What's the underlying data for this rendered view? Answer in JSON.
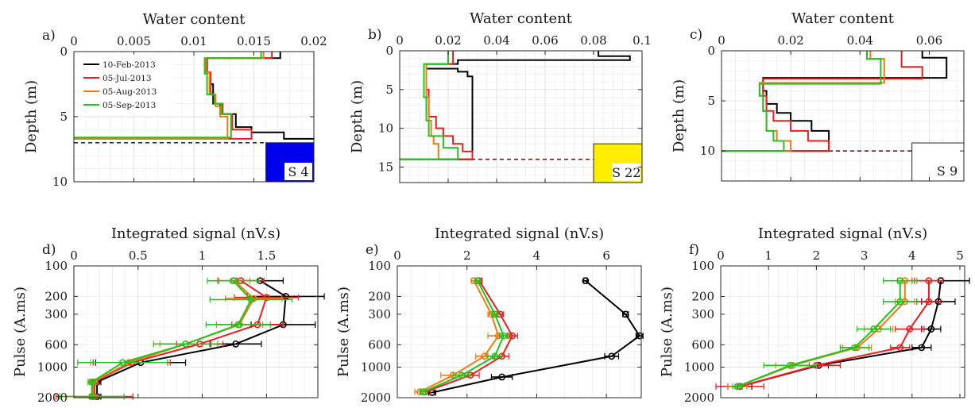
{
  "legend": [
    "10-Feb-2013",
    "05-Jul-2013",
    "05-Aug-2013",
    "05-Sep-2013"
  ],
  "colors": [
    "#000000",
    "#ee1c1c",
    "#f37a12",
    "#1fc41f"
  ],
  "chart_data": [
    {
      "panel": "a)",
      "type": "line",
      "xlabel": "Water content",
      "ylabel": "Depth (m)",
      "xlim": [
        0,
        0.02
      ],
      "ylim": [
        0,
        10
      ],
      "y_reversed": true,
      "grid": true,
      "xticks": [
        0,
        0.005,
        0.01,
        0.015,
        0.02
      ],
      "xtick_labels": [
        "0",
        "0.005",
        "0.01",
        "0.015",
        "0.02"
      ],
      "yticks": [
        0,
        5,
        10
      ],
      "ytick_labels": [
        "0",
        "5",
        "10"
      ],
      "legend_position": "top-left",
      "water_level_depth": 7.0,
      "site": {
        "label": "S 4",
        "fill": "#0000ee",
        "x": [
          0.016,
          0.02
        ],
        "y": [
          7.0,
          10
        ]
      },
      "series": [
        {
          "name": "10-Feb-2013",
          "x": [
            0.0172,
            0.0172,
            0.0111,
            0.0111,
            0.0114,
            0.0114,
            0.0116,
            0.0116,
            0.0122,
            0.0122,
            0.0135,
            0.0135,
            0.0148,
            0.0148,
            0.0175,
            0.0175,
            0.02
          ],
          "y": [
            0,
            0.5,
            0.5,
            1.6,
            1.6,
            2.5,
            2.5,
            4.0,
            4.0,
            4.8,
            4.8,
            5.8,
            5.8,
            6.2,
            6.2,
            6.7,
            6.7
          ]
        },
        {
          "name": "05-Jul-2013",
          "x": [
            0.0165,
            0.0165,
            0.0111,
            0.0111,
            0.0114,
            0.0114,
            0.0118,
            0.0118,
            0.0124,
            0.0124,
            0.0132,
            0.0132,
            0.0148,
            0.0148,
            0.0,
            0.0
          ],
          "y": [
            0,
            0.5,
            0.5,
            1.6,
            1.6,
            3.3,
            3.3,
            4.0,
            4.0,
            4.8,
            4.8,
            6.0,
            6.0,
            6.7,
            6.7,
            6.7
          ]
        },
        {
          "name": "05-Aug-2013",
          "x": [
            0.0158,
            0.0158,
            0.011,
            0.011,
            0.0113,
            0.0113,
            0.0118,
            0.0118,
            0.0122,
            0.0122,
            0.0128,
            0.0128,
            0.0
          ],
          "y": [
            0,
            0.5,
            0.5,
            1.6,
            1.6,
            3.3,
            3.3,
            4.2,
            4.2,
            5.0,
            5.0,
            6.7,
            6.7
          ]
        },
        {
          "name": "05-Sep-2013",
          "x": [
            0.0156,
            0.0156,
            0.0109,
            0.0109,
            0.0111,
            0.0111,
            0.0117,
            0.0117,
            0.0123,
            0.0123,
            0.0131,
            0.0131,
            0.0
          ],
          "y": [
            0,
            0.5,
            0.5,
            1.7,
            1.7,
            3.3,
            3.3,
            4.0,
            4.0,
            4.8,
            4.8,
            6.6,
            6.6
          ]
        }
      ]
    },
    {
      "panel": "b)",
      "type": "line",
      "xlabel": "Water content",
      "ylabel": "Depth (m)",
      "xlim": [
        0,
        0.1
      ],
      "ylim": [
        0,
        17
      ],
      "y_reversed": true,
      "grid": true,
      "xticks": [
        0,
        0.02,
        0.04,
        0.06,
        0.08,
        0.1
      ],
      "xtick_labels": [
        "0",
        "0.02",
        "0.04",
        "0.06",
        "0.08",
        "0.1"
      ],
      "yticks": [
        0,
        5,
        10,
        15
      ],
      "ytick_labels": [
        "0",
        "5",
        "10",
        "15"
      ],
      "water_level_depth": 14.0,
      "site": {
        "label": "S 22",
        "fill": "#ffee00",
        "x": [
          0.08,
          0.1
        ],
        "y": [
          12,
          17
        ]
      },
      "series": [
        {
          "name": "10-Feb-2013",
          "x": [
            0.082,
            0.082,
            0.095,
            0.095,
            0.024,
            0.024,
            0.011,
            0.011,
            0.024,
            0.024,
            0.028,
            0.028,
            0.03,
            0.03,
            0.0
          ],
          "y": [
            0,
            0.7,
            0.7,
            1.2,
            1.2,
            1.7,
            1.7,
            2.3,
            2.3,
            2.7,
            2.7,
            3.3,
            3.3,
            14.0,
            14.0
          ]
        },
        {
          "name": "05-Jul-2013",
          "x": [
            0.022,
            0.022,
            0.011,
            0.011,
            0.012,
            0.012,
            0.015,
            0.015,
            0.018,
            0.018,
            0.022,
            0.022,
            0.026,
            0.026,
            0.03,
            0.03,
            0.0
          ],
          "y": [
            0,
            1.7,
            1.7,
            5.0,
            5.0,
            8.5,
            8.5,
            10.0,
            10.0,
            11.0,
            11.0,
            12.0,
            12.0,
            13.0,
            13.0,
            14.0,
            14.0
          ]
        },
        {
          "name": "05-Aug-2013",
          "x": [
            0.02,
            0.02,
            0.011,
            0.011,
            0.012,
            0.012,
            0.013,
            0.013,
            0.014,
            0.014,
            0.016,
            0.016,
            0.0
          ],
          "y": [
            0,
            1.7,
            1.7,
            6.0,
            6.0,
            9.0,
            9.0,
            11.0,
            11.0,
            12.0,
            12.0,
            14.0,
            14.0
          ]
        },
        {
          "name": "05-Sep-2013",
          "x": [
            0.02,
            0.02,
            0.01,
            0.01,
            0.011,
            0.011,
            0.012,
            0.012,
            0.018,
            0.018,
            0.024,
            0.024,
            0.0
          ],
          "y": [
            0,
            1.7,
            1.7,
            6.0,
            6.0,
            9.0,
            9.0,
            11.0,
            11.0,
            12.5,
            12.5,
            14.0,
            14.0
          ]
        }
      ]
    },
    {
      "panel": "c)",
      "type": "line",
      "xlabel": "Water content",
      "ylabel": "Depth (m)",
      "xlim": [
        0,
        0.07
      ],
      "ylim": [
        0,
        13
      ],
      "y_reversed": true,
      "grid": true,
      "xticks": [
        0,
        0.02,
        0.04,
        0.06
      ],
      "xtick_labels": [
        "0",
        "0.02",
        "0.04",
        "0.06"
      ],
      "yticks": [
        0,
        5,
        10
      ],
      "ytick_labels": [
        "0",
        "5",
        "10"
      ],
      "water_level_depth": 10.0,
      "site": {
        "label": "S 9",
        "fill": "#ffffff",
        "x": [
          0.055,
          0.07
        ],
        "y": [
          9.2,
          13
        ]
      },
      "series": [
        {
          "name": "10-Feb-2013",
          "x": [
            0.058,
            0.058,
            0.065,
            0.065,
            0.012,
            0.012,
            0.013,
            0.013,
            0.016,
            0.016,
            0.02,
            0.02,
            0.026,
            0.026,
            0.031,
            0.031,
            0.0
          ],
          "y": [
            0,
            0.7,
            0.7,
            2.7,
            2.7,
            4.0,
            4.0,
            5.3,
            5.3,
            6.2,
            6.2,
            7.0,
            7.0,
            8.0,
            8.0,
            10.0,
            10.0
          ]
        },
        {
          "name": "05-Jul-2013",
          "x": [
            0.052,
            0.052,
            0.058,
            0.058,
            0.012,
            0.012,
            0.013,
            0.013,
            0.015,
            0.015,
            0.02,
            0.02,
            0.025,
            0.025,
            0.031,
            0.031,
            0.0
          ],
          "y": [
            0,
            1.6,
            1.6,
            2.8,
            2.8,
            4.5,
            4.5,
            6.0,
            6.0,
            7.0,
            7.0,
            8.0,
            8.0,
            9.0,
            9.0,
            10.0,
            10.0
          ]
        },
        {
          "name": "05-Aug-2013",
          "x": [
            0.043,
            0.043,
            0.047,
            0.047,
            0.011,
            0.011,
            0.012,
            0.012,
            0.013,
            0.013,
            0.016,
            0.016,
            0.02,
            0.02,
            0.0
          ],
          "y": [
            0,
            0.8,
            0.8,
            3.2,
            3.2,
            4.5,
            4.5,
            6.0,
            6.0,
            8.0,
            8.0,
            9.0,
            9.0,
            10.0,
            10.0
          ]
        },
        {
          "name": "05-Sep-2013",
          "x": [
            0.042,
            0.042,
            0.046,
            0.046,
            0.011,
            0.011,
            0.012,
            0.012,
            0.013,
            0.013,
            0.015,
            0.015,
            0.018,
            0.018,
            0.0
          ],
          "y": [
            0,
            0.8,
            0.8,
            3.3,
            3.3,
            4.5,
            4.5,
            6.0,
            6.0,
            8.0,
            8.0,
            9.0,
            9.0,
            10.0,
            10.0
          ]
        }
      ]
    },
    {
      "panel": "d)",
      "type": "line",
      "xlabel": "Integrated signal (nV.s)",
      "ylabel": "Pulse (A.ms)",
      "xlim": [
        0,
        1.9
      ],
      "ylim": [
        100,
        2000
      ],
      "y_scale": "log",
      "y_reversed": true,
      "grid": true,
      "xticks": [
        0,
        0.5,
        1,
        1.5
      ],
      "xtick_labels": [
        "0",
        "0.5",
        "1",
        "1.5"
      ],
      "yticks": [
        100,
        200,
        300,
        600,
        1000,
        2000
      ],
      "ytick_labels": [
        "100",
        "200",
        "300",
        "600",
        "1000",
        "2000"
      ],
      "series": [
        {
          "name": "10-Feb-2013",
          "y": [
            140,
            200,
            380,
            590,
            900,
            1400,
            1950
          ],
          "x": [
            1.45,
            1.65,
            1.63,
            1.26,
            0.52,
            0.18,
            0.18
          ],
          "err": [
            0.18,
            0.3,
            0.25,
            0.2,
            0.35,
            0.03,
            0.03
          ]
        },
        {
          "name": "05-Jul-2013",
          "y": [
            140,
            205,
            380,
            590,
            900,
            1400,
            1950
          ],
          "x": [
            1.3,
            1.5,
            1.43,
            0.98,
            0.45,
            0.16,
            0.16
          ],
          "err": [
            0.18,
            0.25,
            0.2,
            0.18,
            0.3,
            0.03,
            0.3
          ]
        },
        {
          "name": "05-Aug-2013",
          "y": [
            140,
            210,
            380,
            590,
            900,
            1400,
            1950
          ],
          "x": [
            1.25,
            1.4,
            1.29,
            0.87,
            0.43,
            0.15,
            0.15
          ],
          "err": [
            0.12,
            0.22,
            0.18,
            0.2,
            0.3,
            0.03,
            0.03
          ]
        },
        {
          "name": "05-Sep-2013",
          "y": [
            140,
            215,
            380,
            590,
            900,
            1400,
            1950
          ],
          "x": [
            1.24,
            1.38,
            1.28,
            0.87,
            0.38,
            0.14,
            0.14
          ],
          "err": [
            0.2,
            0.32,
            0.25,
            0.25,
            0.35,
            0.03,
            0.25
          ]
        }
      ]
    },
    {
      "panel": "e)",
      "type": "line",
      "xlabel": "Integrated signal (nV.s)",
      "ylabel": "Pulse (A.ms)",
      "xlim": [
        0,
        7
      ],
      "ylim": [
        100,
        2000
      ],
      "y_scale": "log",
      "y_reversed": true,
      "grid": true,
      "xticks": [
        0,
        2,
        4,
        6
      ],
      "xtick_labels": [
        "0",
        "2",
        "4",
        "6"
      ],
      "yticks": [
        100,
        200,
        300,
        600,
        1000,
        2000
      ],
      "ytick_labels": [
        "100",
        "200",
        "300",
        "600",
        "1000",
        "2000"
      ],
      "series": [
        {
          "name": "10-Feb-2013",
          "y": [
            140,
            300,
            490,
            780,
            1250,
            1780
          ],
          "x": [
            5.4,
            6.55,
            6.95,
            6.15,
            3.0,
            1.0
          ],
          "err": [
            0.05,
            0.08,
            0.1,
            0.2,
            0.3,
            0.1
          ]
        },
        {
          "name": "05-Jul-2013",
          "y": [
            140,
            300,
            490,
            780,
            1200,
            1750
          ],
          "x": [
            2.35,
            2.95,
            3.3,
            3.0,
            2.1,
            0.8
          ],
          "err": [
            0.08,
            0.1,
            0.15,
            0.2,
            0.25,
            0.15
          ]
        },
        {
          "name": "05-Aug-2013",
          "y": [
            140,
            300,
            490,
            780,
            1200,
            1750
          ],
          "x": [
            2.2,
            2.7,
            2.9,
            2.5,
            1.6,
            0.65
          ],
          "err": [
            0.08,
            0.1,
            0.3,
            0.25,
            0.35,
            0.15
          ]
        },
        {
          "name": "05-Sep-2013",
          "y": [
            140,
            300,
            490,
            780,
            1200,
            1750
          ],
          "x": [
            2.3,
            2.8,
            3.05,
            2.8,
            1.85,
            0.75
          ],
          "err": [
            0.06,
            0.08,
            0.12,
            0.2,
            0.25,
            0.1
          ]
        }
      ]
    },
    {
      "panel": "f)",
      "type": "line",
      "xlabel": "Integrated signal (nV.s)",
      "ylabel": "Pulse (A.ms)",
      "xlim": [
        0,
        5.1
      ],
      "ylim": [
        100,
        2000
      ],
      "y_scale": "log",
      "y_reversed": true,
      "grid": true,
      "xticks": [
        0,
        1,
        2,
        3,
        4,
        5
      ],
      "xtick_labels": [
        "0",
        "1",
        "2",
        "3",
        "4",
        "5"
      ],
      "yticks": [
        100,
        200,
        300,
        600,
        1000,
        2000
      ],
      "ytick_labels": [
        "100",
        "200",
        "300",
        "600",
        "1000",
        "2000"
      ],
      "series": [
        {
          "name": "10-Feb-2013",
          "y": [
            140,
            225,
            420,
            640,
            960,
            1550
          ],
          "x": [
            4.6,
            4.55,
            4.4,
            4.2,
            2.05,
            0.4
          ],
          "err": [
            0.6,
            0.35,
            0.2,
            0.2,
            0.2,
            0.25
          ]
        },
        {
          "name": "05-Jul-2013",
          "y": [
            140,
            225,
            420,
            640,
            960,
            1550
          ],
          "x": [
            4.35,
            4.35,
            3.95,
            3.75,
            2.0,
            0.4
          ],
          "err": [
            0.3,
            0.25,
            0.3,
            0.2,
            0.5,
            0.5
          ]
        },
        {
          "name": "05-Aug-2013",
          "y": [
            140,
            225,
            420,
            640,
            960,
            1550
          ],
          "x": [
            3.85,
            3.85,
            3.3,
            2.85,
            1.5,
            0.35
          ],
          "err": [
            0.15,
            0.2,
            0.3,
            0.3,
            0.35,
            0.2
          ]
        },
        {
          "name": "05-Sep-2013",
          "y": [
            140,
            225,
            420,
            640,
            960,
            1550
          ],
          "x": [
            3.75,
            3.75,
            3.2,
            2.8,
            1.45,
            0.35
          ],
          "err": [
            0.35,
            0.35,
            0.35,
            0.3,
            0.55,
            0.1
          ]
        }
      ]
    }
  ]
}
